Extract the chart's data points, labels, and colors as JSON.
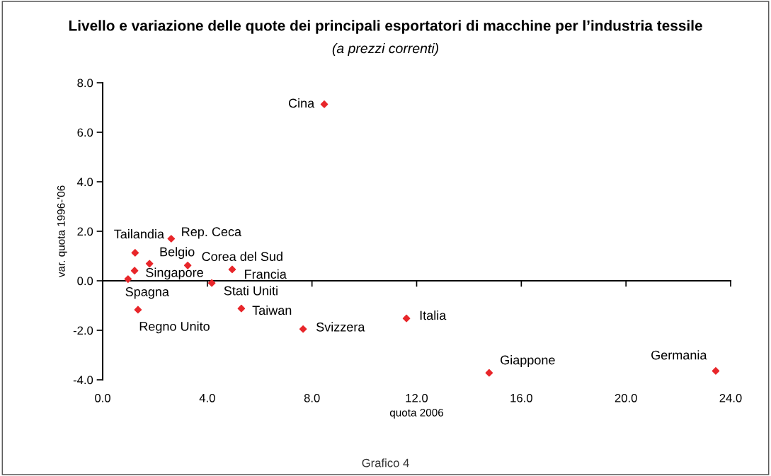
{
  "chart_data": {
    "type": "scatter",
    "title": "Livello e variazione delle quote dei principali esportatori di macchine per l’industria tessile",
    "subtitle": "(a prezzi correnti)",
    "xlabel": "quota 2006",
    "ylabel": "var. quota 1996-'06",
    "x": [
      8.47,
      2.62,
      1.24,
      1.79,
      3.25,
      1.22,
      4.95,
      0.97,
      4.17,
      1.35,
      5.3,
      7.66,
      11.61,
      14.77,
      23.43
    ],
    "series": [
      {
        "color": "#e8262a",
        "values": [
          7.13,
          1.7,
          1.13,
          0.69,
          0.62,
          0.41,
          0.46,
          0.07,
          -0.09,
          -1.17,
          -1.12,
          -1.95,
          -1.52,
          -3.72,
          -3.64
        ]
      }
    ],
    "annotations": [
      {
        "text": "Cina",
        "x": 8.47,
        "y": 7.13
      },
      {
        "text": "Rep. Ceca",
        "x": 2.62,
        "y": 1.7
      },
      {
        "text": "Tailandia",
        "x": 1.24,
        "y": 1.13
      },
      {
        "text": "Belgio",
        "x": 1.79,
        "y": 0.69
      },
      {
        "text": "Corea del Sud",
        "x": 3.25,
        "y": 0.62
      },
      {
        "text": "Singapore",
        "x": 1.22,
        "y": 0.41
      },
      {
        "text": "Francia",
        "x": 4.95,
        "y": 0.46
      },
      {
        "text": "Spagna",
        "x": 0.97,
        "y": 0.07
      },
      {
        "text": "Stati Uniti",
        "x": 4.17,
        "y": -0.09
      },
      {
        "text": "Regno Unito",
        "x": 1.35,
        "y": -1.17
      },
      {
        "text": "Taiwan",
        "x": 5.3,
        "y": -1.12
      },
      {
        "text": "Svizzera",
        "x": 7.66,
        "y": -1.95
      },
      {
        "text": "Italia",
        "x": 11.61,
        "y": -1.52
      },
      {
        "text": "Giappone",
        "x": 14.77,
        "y": -3.72
      },
      {
        "text": "Germania",
        "x": 23.43,
        "y": -3.64
      },
      "Grafico 4"
    ],
    "xlim": [
      0,
      24
    ],
    "ylim": [
      -4,
      8
    ],
    "xticks": [
      {
        "value": 0,
        "label": "0.0"
      },
      {
        "value": 4,
        "label": "4.0"
      },
      {
        "value": 8,
        "label": "8.0"
      },
      {
        "value": 12,
        "label": "12.0"
      },
      {
        "value": 16,
        "label": "16.0"
      },
      {
        "value": 20,
        "label": "20.0"
      },
      {
        "value": 24,
        "label": "24.0"
      }
    ],
    "yticks": [
      {
        "value": -4,
        "label": "-4.0"
      },
      {
        "value": -2,
        "label": "-2.0"
      },
      {
        "value": 0,
        "label": "0.0"
      },
      {
        "value": 2,
        "label": "2.0"
      },
      {
        "value": 4,
        "label": "4.0"
      },
      {
        "value": 6,
        "label": "6.0"
      },
      {
        "value": 8,
        "label": "8.0"
      }
    ],
    "marker": "diamond"
  }
}
